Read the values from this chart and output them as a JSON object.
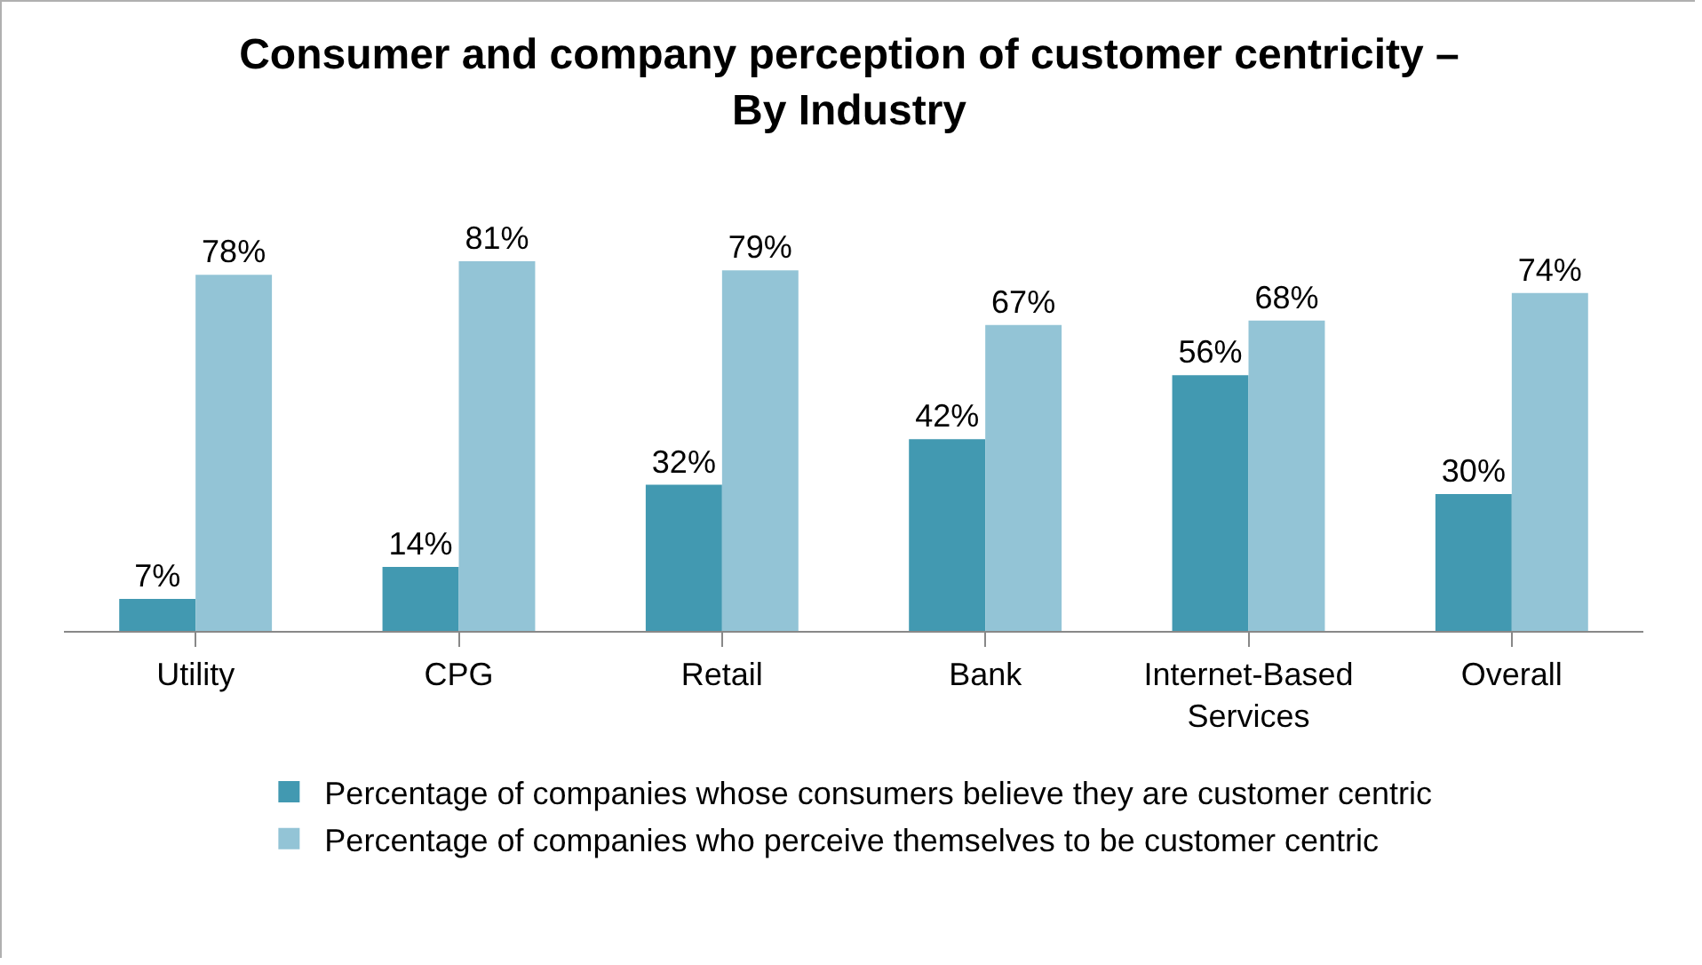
{
  "chart_data": {
    "type": "bar",
    "title": "Consumer and company perception of customer centricity – By Industry",
    "categories": [
      "Utility",
      "CPG",
      "Retail",
      "Bank",
      "Internet-Based Services",
      "Overall"
    ],
    "series": [
      {
        "name": "Percentage of companies whose consumers believe they are customer centric",
        "color": "#4299b1",
        "values": [
          7,
          14,
          32,
          42,
          56,
          30
        ],
        "value_labels": [
          "7%",
          "14%",
          "32%",
          "42%",
          "56%",
          "30%"
        ]
      },
      {
        "name": "Percentage of companies who perceive themselves to be customer centric",
        "color": "#93c4d6",
        "values": [
          78,
          81,
          79,
          67,
          68,
          74
        ],
        "value_labels": [
          "78%",
          "81%",
          "79%",
          "67%",
          "68%",
          "74%"
        ]
      }
    ],
    "grid": false,
    "legend": "bottom"
  }
}
